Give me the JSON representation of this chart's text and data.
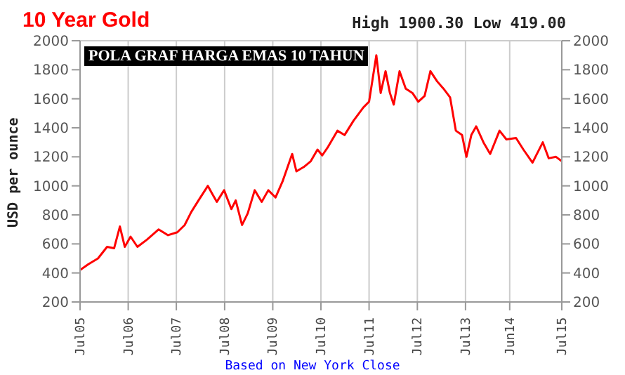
{
  "chart_data": {
    "type": "line",
    "title": "10 Year Gold",
    "subtitle": "High 1900.30 Low 419.00",
    "ylabel": "USD per ounce",
    "annotations": [
      "POLA GRAF HARGA EMAS 10 TAHUN",
      "Based on New York Close"
    ],
    "xlim": [
      "2005-07-01",
      "2015-07-01"
    ],
    "xticks": [
      {
        "value": "2005-07",
        "label": "Jul05"
      },
      {
        "value": "2006-07",
        "label": "Jul06"
      },
      {
        "value": "2007-07",
        "label": "Jul07"
      },
      {
        "value": "2008-07",
        "label": "Jul08"
      },
      {
        "value": "2009-07",
        "label": "Jul09"
      },
      {
        "value": "2010-07",
        "label": "Jul10"
      },
      {
        "value": "2011-07",
        "label": "Jul11"
      },
      {
        "value": "2012-07",
        "label": "Jul12"
      },
      {
        "value": "2013-07",
        "label": "Jul13"
      },
      {
        "value": "2014-06",
        "label": "Jun14"
      },
      {
        "value": "2015-07",
        "label": "Jul15"
      }
    ],
    "ylim": [
      200,
      2000
    ],
    "yticks": [
      200,
      400,
      600,
      800,
      1000,
      1200,
      1400,
      1600,
      1800,
      2000
    ],
    "y2lim": [
      200,
      2000
    ],
    "y2ticks": [
      200,
      400,
      600,
      800,
      1000,
      1200,
      1400,
      1600,
      1800,
      2000
    ],
    "grid": true,
    "x": [
      "2005-07-01",
      "2005-09-02",
      "2005-11-14",
      "2006-01-22",
      "2006-03-16",
      "2006-04-29",
      "2006-06-05",
      "2006-07-19",
      "2006-09-09",
      "2006-11-21",
      "2007-02-17",
      "2007-04-29",
      "2007-07-08",
      "2007-09-02",
      "2007-10-22",
      "2007-12-16",
      "2008-02-25",
      "2008-04-01",
      "2008-05-03",
      "2008-06-27",
      "2008-08-21",
      "2008-09-23",
      "2008-11-10",
      "2008-12-23",
      "2009-02-14",
      "2009-04-08",
      "2009-05-28",
      "2009-07-22",
      "2009-09-13",
      "2009-11-25",
      "2009-12-27",
      "2010-02-21",
      "2010-04-15",
      "2010-06-05",
      "2010-07-11",
      "2010-08-25",
      "2010-11-03",
      "2010-12-27",
      "2011-03-06",
      "2011-05-18",
      "2011-07-01",
      "2011-08-25",
      "2011-09-27",
      "2011-11-03",
      "2011-12-06",
      "2012-01-04",
      "2012-02-17",
      "2012-04-04",
      "2012-05-25",
      "2012-07-08",
      "2012-08-25",
      "2012-10-08",
      "2012-11-28",
      "2013-01-15",
      "2013-03-06",
      "2013-04-19",
      "2013-06-05",
      "2013-07-08",
      "2013-08-14",
      "2013-09-20",
      "2013-11-14",
      "2014-01-04",
      "2014-03-16",
      "2014-05-07",
      "2014-07-19",
      "2014-09-13",
      "2014-11-21",
      "2015-02-07",
      "2015-03-24",
      "2015-05-18",
      "2015-07-01"
    ],
    "series": [
      {
        "color": "#ff0000",
        "values": [
          420,
          460,
          500,
          580,
          570,
          720,
          580,
          650,
          580,
          630,
          700,
          660,
          680,
          730,
          820,
          900,
          1000,
          940,
          890,
          970,
          840,
          900,
          730,
          810,
          970,
          890,
          970,
          920,
          1030,
          1220,
          1100,
          1130,
          1170,
          1250,
          1210,
          1270,
          1380,
          1350,
          1450,
          1540,
          1580,
          1900,
          1640,
          1790,
          1640,
          1560,
          1790,
          1670,
          1640,
          1580,
          1620,
          1790,
          1720,
          1670,
          1610,
          1380,
          1350,
          1200,
          1350,
          1410,
          1300,
          1220,
          1380,
          1320,
          1330,
          1250,
          1160,
          1300,
          1190,
          1200,
          1170
        ]
      }
    ]
  }
}
